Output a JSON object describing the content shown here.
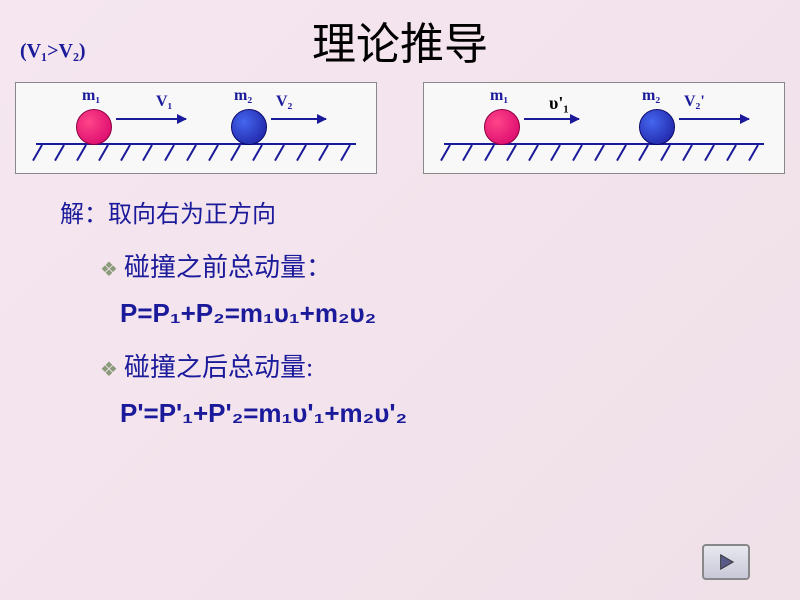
{
  "title": "理论推导",
  "condition": "(V₁>V₂)",
  "diagrams": {
    "before": {
      "m1_label": "m₁",
      "v1_label": "V₁",
      "m2_label": "m₂",
      "v2_label": "V₂",
      "ball1_color": "#d4006a",
      "ball2_color": "#1a1a9a"
    },
    "after": {
      "m1_label": "m₁",
      "v1_label": "υ'₁",
      "m2_label": "m₂",
      "v2_label": "V₂'",
      "ball1_color": "#d4006a",
      "ball2_color": "#1a1a9a"
    },
    "hatch_count": 15,
    "hatch_spacing": 22,
    "hatch_start": 25
  },
  "text": {
    "line1": "解：取向右为正方向",
    "bullet1": "碰撞之前总动量：",
    "eq1": "P=P₁+P₂=m₁υ₁+m₂υ₂",
    "bullet2": "碰撞之后总动量:",
    "eq2": "P'=P'₁+P'₂=m₁υ'₁+m₂υ'₂"
  },
  "colors": {
    "text_blue": "#1a1a9a",
    "bullet_green": "#8a9a7a",
    "background": "#f5e6f0"
  }
}
